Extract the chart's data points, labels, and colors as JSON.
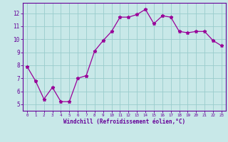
{
  "x": [
    0,
    1,
    2,
    3,
    4,
    5,
    6,
    7,
    8,
    9,
    10,
    11,
    12,
    13,
    14,
    15,
    16,
    17,
    18,
    19,
    20,
    21,
    22,
    23
  ],
  "y": [
    7.9,
    6.8,
    5.4,
    6.3,
    5.2,
    5.2,
    7.0,
    7.2,
    9.1,
    9.9,
    10.6,
    11.7,
    11.7,
    11.9,
    12.3,
    11.2,
    11.8,
    11.7,
    10.6,
    10.5,
    10.6,
    10.6,
    9.9,
    9.5
  ],
  "line_color": "#990099",
  "marker": "*",
  "bg_color": "#c8e8e8",
  "grid_color": "#99cccc",
  "axis_color": "#660099",
  "xlabel": "Windchill (Refroidissement éolien,°C)",
  "xlim": [
    -0.5,
    23.5
  ],
  "ylim": [
    4.5,
    12.8
  ],
  "yticks": [
    5,
    6,
    7,
    8,
    9,
    10,
    11,
    12
  ],
  "xticks": [
    0,
    1,
    2,
    3,
    4,
    5,
    6,
    7,
    8,
    9,
    10,
    11,
    12,
    13,
    14,
    15,
    16,
    17,
    18,
    19,
    20,
    21,
    22,
    23
  ]
}
